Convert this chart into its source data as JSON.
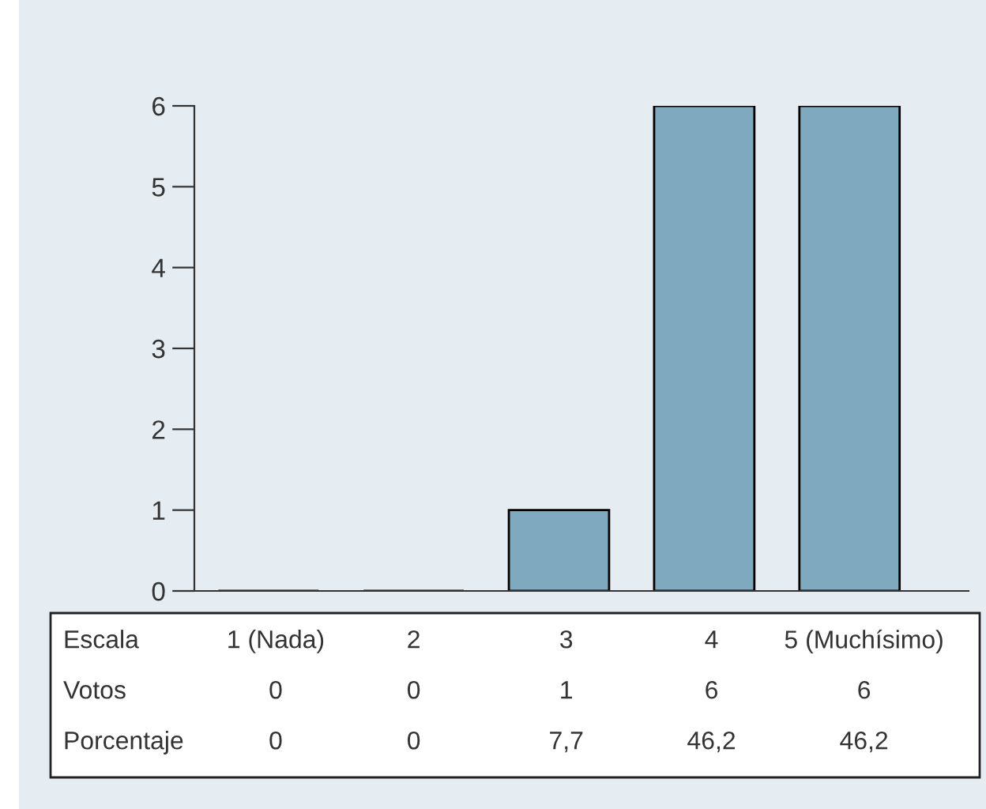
{
  "chart_data": {
    "type": "bar",
    "categories": [
      "1 (Nada)",
      "2",
      "3",
      "4",
      "5 (Muchísimo)"
    ],
    "values": [
      0,
      0,
      1,
      6,
      6
    ],
    "color": "#7ea9bf",
    "ylim": [
      0,
      6
    ],
    "yticks": [
      0,
      1,
      2,
      3,
      4,
      5,
      6
    ],
    "grid": false,
    "legend": false,
    "data_labels": true,
    "annotations": [
      "Escala",
      "Votos",
      "Porcentaje",
      "0",
      "0",
      "7,7",
      "46,2",
      "46,2"
    ]
  }
}
